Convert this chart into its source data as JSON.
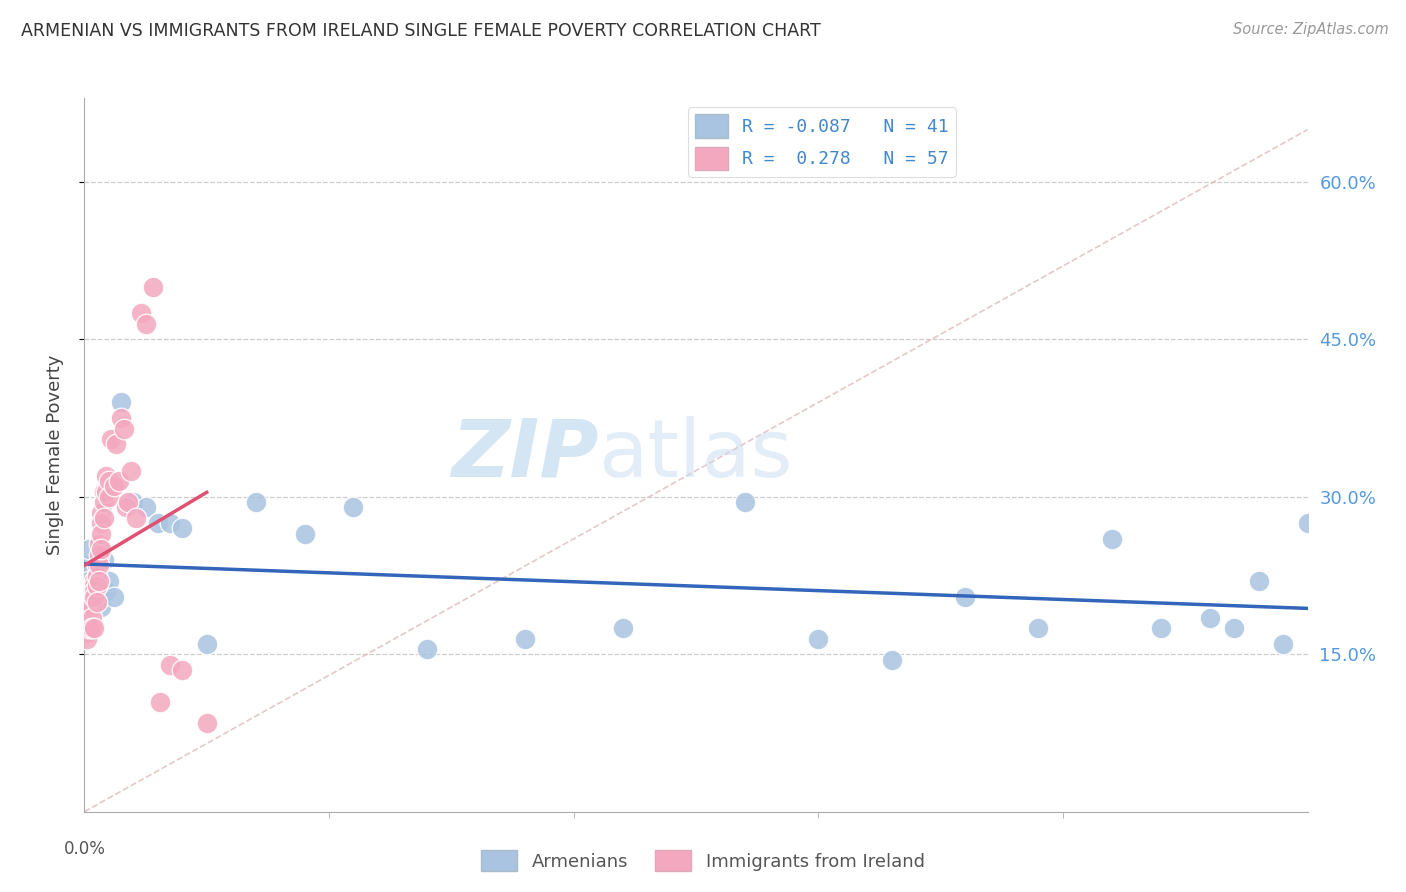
{
  "title": "ARMENIAN VS IMMIGRANTS FROM IRELAND SINGLE FEMALE POVERTY CORRELATION CHART",
  "source": "Source: ZipAtlas.com",
  "ylabel": "Single Female Poverty",
  "yticks": [
    0.15,
    0.3,
    0.45,
    0.6
  ],
  "ytick_labels": [
    "15.0%",
    "30.0%",
    "45.0%",
    "60.0%"
  ],
  "xlim": [
    0.0,
    0.5
  ],
  "ylim": [
    0.0,
    0.68
  ],
  "xtick_minor_positions": [
    0.1,
    0.2,
    0.3,
    0.4
  ],
  "legend_r1": "R = -0.087",
  "legend_n1": "N = 41",
  "legend_r2": "R =  0.278",
  "legend_n2": "N = 57",
  "color_armenians": "#a8c4e0",
  "color_ireland": "#f4a8c0",
  "line_color_armenians": "#3366bb",
  "line_color_ireland": "#e05070",
  "background": "#ffffff",
  "watermark_zip": "ZIP",
  "watermark_atlas": "atlas",
  "armenians_x": [
    0.001,
    0.002,
    0.002,
    0.003,
    0.003,
    0.003,
    0.004,
    0.004,
    0.005,
    0.006,
    0.006,
    0.007,
    0.008,
    0.009,
    0.01,
    0.012,
    0.015,
    0.02,
    0.025,
    0.03,
    0.035,
    0.04,
    0.05,
    0.07,
    0.09,
    0.11,
    0.14,
    0.18,
    0.22,
    0.27,
    0.3,
    0.33,
    0.36,
    0.39,
    0.42,
    0.44,
    0.46,
    0.47,
    0.48,
    0.49,
    0.5
  ],
  "armenians_y": [
    0.235,
    0.25,
    0.22,
    0.2,
    0.215,
    0.195,
    0.215,
    0.195,
    0.225,
    0.205,
    0.21,
    0.195,
    0.24,
    0.21,
    0.22,
    0.205,
    0.39,
    0.295,
    0.29,
    0.275,
    0.275,
    0.27,
    0.16,
    0.295,
    0.265,
    0.29,
    0.155,
    0.165,
    0.175,
    0.295,
    0.165,
    0.145,
    0.205,
    0.175,
    0.26,
    0.175,
    0.185,
    0.175,
    0.22,
    0.16,
    0.275
  ],
  "ireland_x": [
    0.001,
    0.001,
    0.001,
    0.001,
    0.001,
    0.001,
    0.002,
    0.002,
    0.002,
    0.002,
    0.002,
    0.003,
    0.003,
    0.003,
    0.003,
    0.003,
    0.004,
    0.004,
    0.004,
    0.004,
    0.004,
    0.005,
    0.005,
    0.005,
    0.005,
    0.006,
    0.006,
    0.006,
    0.006,
    0.007,
    0.007,
    0.007,
    0.007,
    0.008,
    0.008,
    0.008,
    0.009,
    0.009,
    0.01,
    0.01,
    0.011,
    0.012,
    0.013,
    0.014,
    0.015,
    0.016,
    0.017,
    0.018,
    0.019,
    0.021,
    0.023,
    0.025,
    0.028,
    0.031,
    0.035,
    0.04,
    0.05
  ],
  "ireland_y": [
    0.19,
    0.185,
    0.18,
    0.175,
    0.17,
    0.165,
    0.2,
    0.19,
    0.185,
    0.18,
    0.175,
    0.21,
    0.205,
    0.195,
    0.185,
    0.175,
    0.22,
    0.215,
    0.21,
    0.205,
    0.175,
    0.235,
    0.225,
    0.215,
    0.2,
    0.255,
    0.245,
    0.235,
    0.22,
    0.285,
    0.275,
    0.265,
    0.25,
    0.305,
    0.295,
    0.28,
    0.32,
    0.305,
    0.315,
    0.3,
    0.355,
    0.31,
    0.35,
    0.315,
    0.375,
    0.365,
    0.29,
    0.295,
    0.325,
    0.28,
    0.475,
    0.465,
    0.5,
    0.105,
    0.14,
    0.135,
    0.085
  ],
  "ref_line_color": "#ddbbbb",
  "ref_line_x": [
    0.0,
    0.5
  ],
  "ref_line_y": [
    0.0,
    0.65
  ]
}
